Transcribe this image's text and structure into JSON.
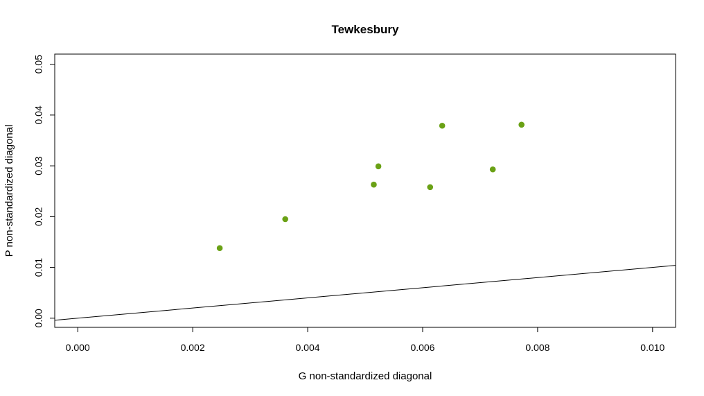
{
  "chart_data": {
    "type": "scatter",
    "title": "Tewkesbury",
    "xlabel": "G non-standardized diagonal",
    "ylabel": "P non-standardized diagonal",
    "xlim": [
      -0.0004,
      0.0104
    ],
    "ylim": [
      -0.0018,
      0.052
    ],
    "x_ticks": [
      0.0,
      0.002,
      0.004,
      0.006,
      0.008,
      0.01
    ],
    "x_tick_labels": [
      "0.000",
      "0.002",
      "0.004",
      "0.006",
      "0.008",
      "0.010"
    ],
    "y_ticks": [
      0.0,
      0.01,
      0.02,
      0.03,
      0.04,
      0.05
    ],
    "y_tick_labels": [
      "0.00",
      "0.01",
      "0.02",
      "0.03",
      "0.04",
      "0.05"
    ],
    "grid": false,
    "legend": "none",
    "point_color": "#6aa115",
    "reference_line": {
      "slope": 1,
      "intercept": 0,
      "color": "#000000"
    },
    "points": [
      {
        "x": 0.00247,
        "y": 0.0138
      },
      {
        "x": 0.00361,
        "y": 0.0195
      },
      {
        "x": 0.00515,
        "y": 0.0263
      },
      {
        "x": 0.00523,
        "y": 0.0299
      },
      {
        "x": 0.00613,
        "y": 0.0258
      },
      {
        "x": 0.00634,
        "y": 0.0379
      },
      {
        "x": 0.00722,
        "y": 0.0293
      },
      {
        "x": 0.00772,
        "y": 0.0381
      }
    ]
  }
}
